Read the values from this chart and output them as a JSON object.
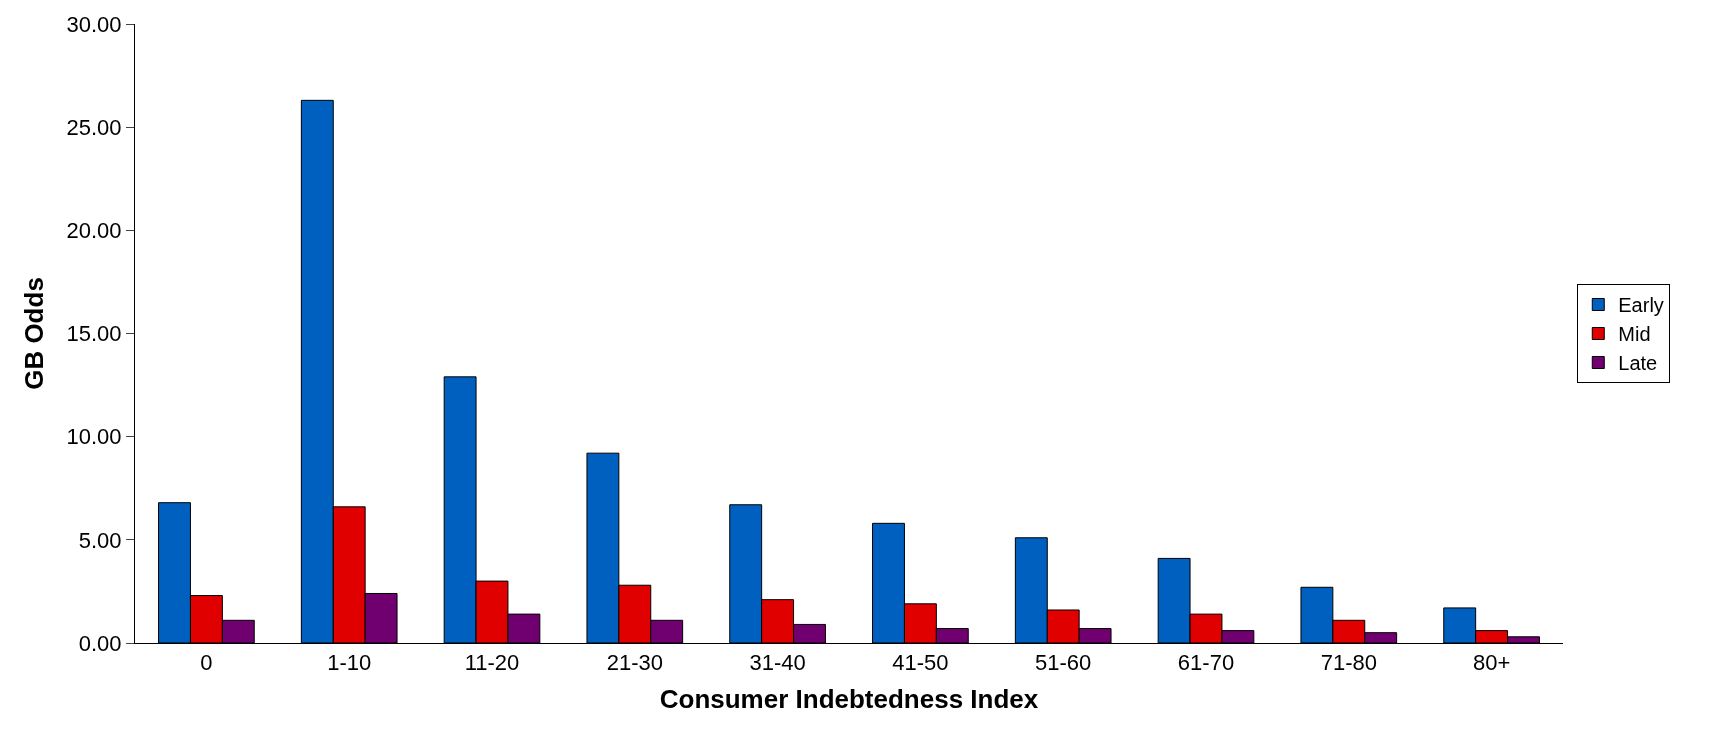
{
  "chart_data": {
    "type": "bar",
    "xlabel": "Consumer Indebtedness Index",
    "ylabel": "GB Odds",
    "categories": [
      "0",
      "1-10",
      "11-20",
      "21-30",
      "31-40",
      "41-50",
      "51-60",
      "61-70",
      "71-80",
      "80+"
    ],
    "series": [
      {
        "name": "Early",
        "color": "#0060c0",
        "values": [
          6.8,
          26.3,
          12.9,
          9.2,
          6.7,
          5.8,
          5.1,
          4.1,
          2.7,
          1.7
        ]
      },
      {
        "name": "Mid",
        "color": "#e00000",
        "values": [
          2.3,
          6.6,
          3.0,
          2.8,
          2.1,
          1.9,
          1.6,
          1.4,
          1.1,
          0.6
        ]
      },
      {
        "name": "Late",
        "color": "#700070",
        "values": [
          1.1,
          2.4,
          1.4,
          1.1,
          0.9,
          0.7,
          0.7,
          0.6,
          0.5,
          0.3
        ]
      }
    ],
    "ylim": [
      0,
      30
    ],
    "yticks": [
      {
        "value": 0,
        "label": "0.00"
      },
      {
        "value": 5,
        "label": "5.00"
      },
      {
        "value": 10,
        "label": "10.00"
      },
      {
        "value": 15,
        "label": "15.00"
      },
      {
        "value": 20,
        "label": "20.00"
      },
      {
        "value": 25,
        "label": "25.00"
      },
      {
        "value": 30,
        "label": "30.00"
      }
    ],
    "legend": "right"
  }
}
